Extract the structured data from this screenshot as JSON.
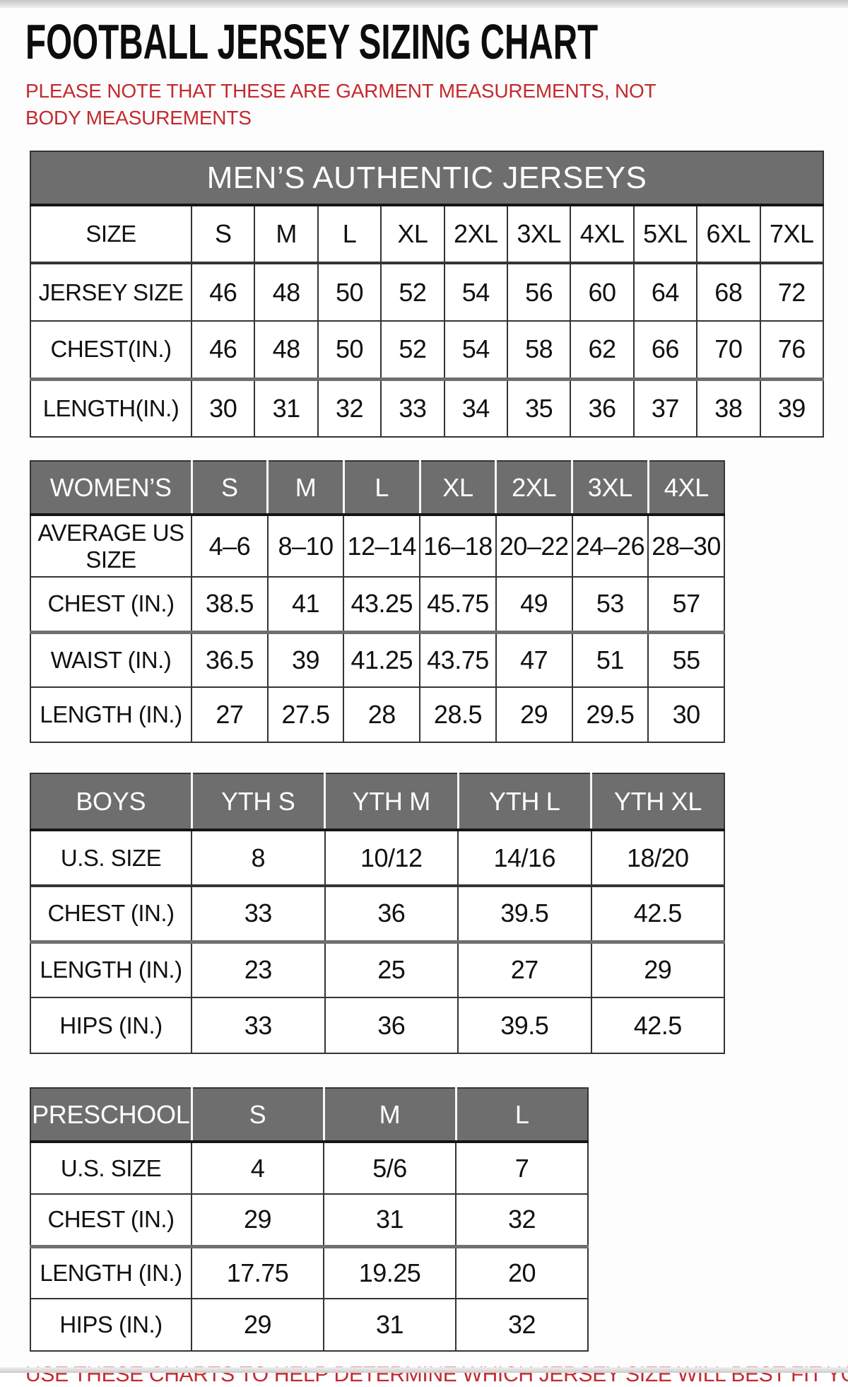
{
  "title": "FOOTBALL JERSEY SIZING CHART",
  "note": "PLEASE NOTE THAT THESE ARE GARMENT MEASUREMENTS, NOT BODY MEASUREMENTS",
  "footer": "USE THESE CHARTS TO HELP DETERMINE WHICH JERSEY SIZE WILL BEST FIT YOU.",
  "colors": {
    "header_gray": "#6e6e6e",
    "accent_red": "#c32a2f",
    "border_dark": "#343434"
  },
  "tables": [
    {
      "id": "mens",
      "header_title": "MEN’S AUTHENTIC JERSEYS",
      "rows": [
        {
          "label": "SIZE",
          "values": [
            "S",
            "M",
            "L",
            "XL",
            "2XL",
            "3XL",
            "4XL",
            "5XL",
            "6XL",
            "7XL"
          ]
        },
        {
          "label": "JERSEY SIZE",
          "values": [
            "46",
            "48",
            "50",
            "52",
            "54",
            "56",
            "60",
            "64",
            "68",
            "72"
          ]
        },
        {
          "label": "CHEST(IN.)",
          "values": [
            "46",
            "48",
            "50",
            "52",
            "54",
            "58",
            "62",
            "66",
            "70",
            "76"
          ]
        },
        {
          "label": "LENGTH(IN.)",
          "values": [
            "30",
            "31",
            "32",
            "33",
            "34",
            "35",
            "36",
            "37",
            "38",
            "39"
          ]
        }
      ]
    },
    {
      "id": "womens",
      "header_cells": [
        "WOMEN’S",
        "S",
        "M",
        "L",
        "XL",
        "2XL",
        "3XL",
        "4XL"
      ],
      "rows": [
        {
          "label": "AVERAGE US SIZE",
          "values": [
            "4–6",
            "8–10",
            "12–14",
            "16–18",
            "20–22",
            "24–26",
            "28–30"
          ]
        },
        {
          "label": "CHEST (IN.)",
          "values": [
            "38.5",
            "41",
            "43.25",
            "45.75",
            "49",
            "53",
            "57"
          ]
        },
        {
          "label": "WAIST (IN.)",
          "values": [
            "36.5",
            "39",
            "41.25",
            "43.75",
            "47",
            "51",
            "55"
          ]
        },
        {
          "label": "LENGTH (IN.)",
          "values": [
            "27",
            "27.5",
            "28",
            "28.5",
            "29",
            "29.5",
            "30"
          ]
        }
      ]
    },
    {
      "id": "boys",
      "header_cells": [
        "BOYS",
        "YTH S",
        "YTH M",
        "YTH L",
        "YTH XL"
      ],
      "rows": [
        {
          "label": "U.S. SIZE",
          "values": [
            "8",
            "10/12",
            "14/16",
            "18/20"
          ]
        },
        {
          "label": "CHEST (IN.)",
          "values": [
            "33",
            "36",
            "39.5",
            "42.5"
          ]
        },
        {
          "label": "LENGTH (IN.)",
          "values": [
            "23",
            "25",
            "27",
            "29"
          ]
        },
        {
          "label": "HIPS (IN.)",
          "values": [
            "33",
            "36",
            "39.5",
            "42.5"
          ]
        }
      ]
    },
    {
      "id": "preschool",
      "header_cells": [
        "PRESCHOOL",
        "S",
        "M",
        "L"
      ],
      "rows": [
        {
          "label": "U.S. SIZE",
          "values": [
            "4",
            "5/6",
            "7"
          ]
        },
        {
          "label": "CHEST (IN.)",
          "values": [
            "29",
            "31",
            "32"
          ]
        },
        {
          "label": "LENGTH (IN.)",
          "values": [
            "17.75",
            "19.25",
            "20"
          ]
        },
        {
          "label": "HIPS (IN.)",
          "values": [
            "29",
            "31",
            "32"
          ]
        }
      ]
    }
  ]
}
